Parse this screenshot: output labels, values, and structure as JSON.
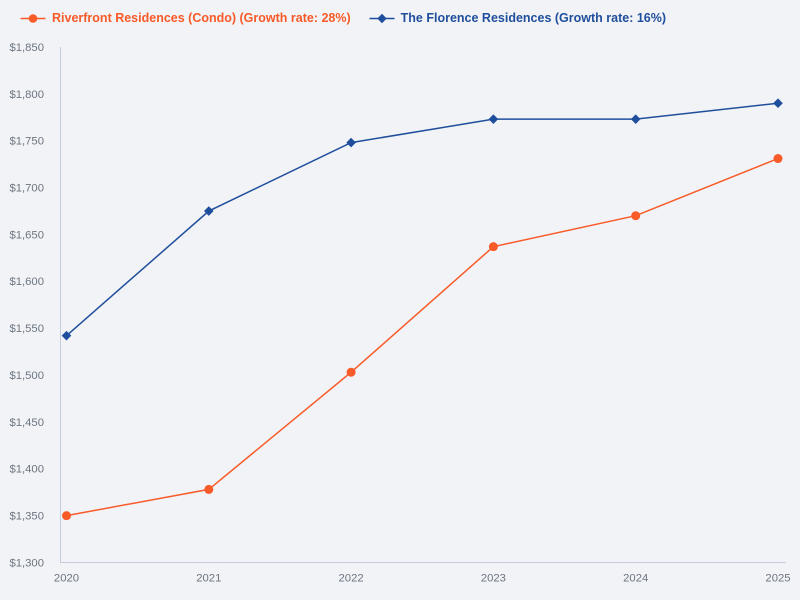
{
  "chart_data": {
    "type": "line",
    "categories": [
      "2020",
      "2021",
      "2022",
      "2023",
      "2024",
      "2025"
    ],
    "series": [
      {
        "name": "Riverfront Residences (Condo) (Growth rate: 28%)",
        "marker": "circle",
        "color": "#f85a28",
        "values": [
          1350,
          1378,
          1503,
          1637,
          1670,
          1731
        ]
      },
      {
        "name": "The Florence Residences (Growth rate: 16%)",
        "marker": "diamond",
        "color": "#1f4e9c",
        "values": [
          1542,
          1675,
          1748,
          1773,
          1773,
          1790
        ]
      }
    ],
    "title": "",
    "xlabel": "",
    "ylabel": "",
    "ylim": [
      1300,
      1850
    ],
    "ytick_step": 50,
    "currency_prefix": "$",
    "grid": false,
    "legend_position": "top-left",
    "background": "#f1f3f6",
    "axis_color": "#c5cedd",
    "tick_color": "#6d7581"
  }
}
